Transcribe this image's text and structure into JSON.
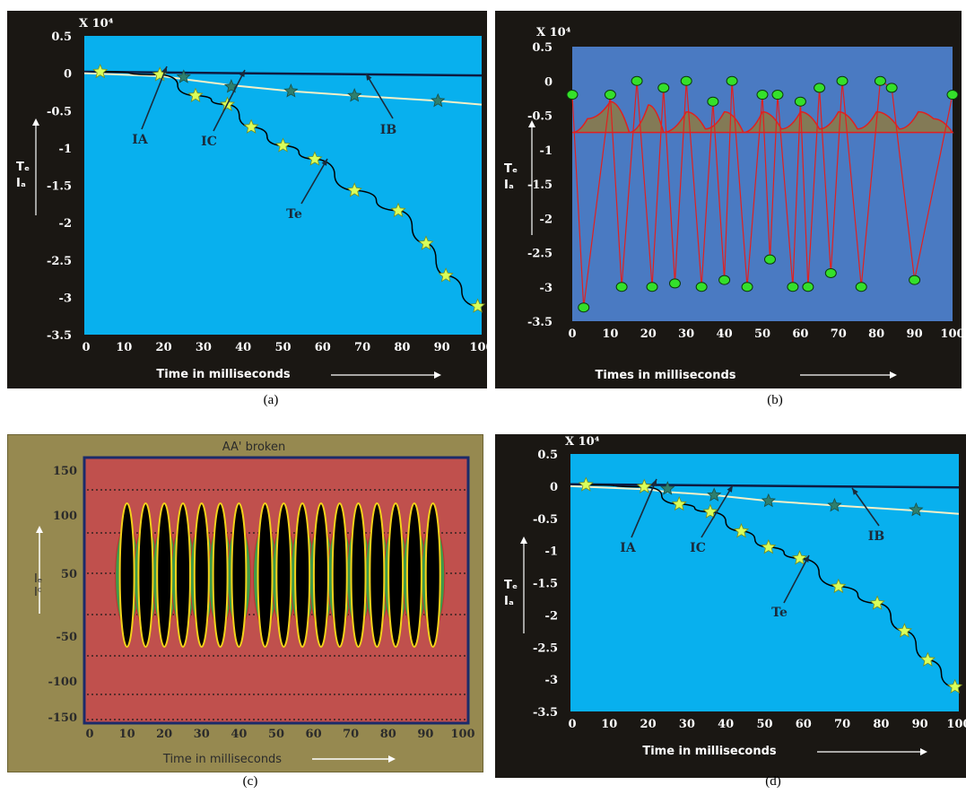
{
  "captions": [
    "(a)",
    "(b)",
    "(c)",
    "(d)"
  ],
  "chart_data": [
    {
      "id": "a",
      "type": "line",
      "title": "",
      "xlabel": "Time in milliseconds",
      "ylabel_lines": [
        "Tₑ",
        "Iₐ"
      ],
      "exponent_label": "X 10⁴",
      "xlim": [
        0,
        100
      ],
      "ylim": [
        -3.5,
        0.5
      ],
      "x_ticks": [
        "0",
        "10",
        "20",
        "30",
        "40",
        "50",
        "60",
        "70",
        "80",
        "90",
        "100"
      ],
      "y_ticks": [
        "0.5",
        "0",
        "-0.5",
        "-1",
        "-1.5",
        "-2",
        "-2.5",
        "-3",
        "-3.5"
      ],
      "annotations": [
        "IA",
        "IC",
        "IB",
        "Te"
      ],
      "series": [
        {
          "name": "IB",
          "x": [
            0,
            100
          ],
          "y": [
            0.02,
            -0.03
          ]
        },
        {
          "name": "IC",
          "x": [
            0,
            20,
            25,
            37,
            52,
            68,
            89,
            100
          ],
          "y": [
            0,
            -0.04,
            -0.08,
            -0.16,
            -0.24,
            -0.3,
            -0.37,
            -0.42
          ]
        },
        {
          "name": "Te",
          "x": [
            4,
            19,
            28,
            36,
            42,
            50,
            58,
            68,
            79,
            86,
            91,
            99
          ],
          "y": [
            0.02,
            -0.02,
            -0.3,
            -0.42,
            -0.72,
            -0.97,
            -1.15,
            -1.57,
            -1.84,
            -2.28,
            -2.71,
            -3.12
          ]
        }
      ],
      "star_points": {
        "IC": {
          "x": [
            25,
            37,
            52,
            68,
            89
          ],
          "y": [
            -0.05,
            -0.18,
            -0.24,
            -0.3,
            -0.37
          ]
        },
        "Te": {
          "x": [
            4,
            19,
            28,
            36,
            42,
            50,
            58,
            68,
            79,
            86,
            91,
            99
          ],
          "y": [
            0.02,
            -0.02,
            -0.3,
            -0.42,
            -0.72,
            -0.97,
            -1.15,
            -1.57,
            -1.84,
            -2.28,
            -2.71,
            -3.12
          ]
        }
      },
      "colors": {
        "background": "#08b0ee",
        "frame": "#1a1713",
        "IB": "#0e1a40",
        "IC": "#f3f0c8",
        "Te": "#000000",
        "star_fill": "#d9ff5a",
        "star_stroke": "#7f8f1c",
        "star_dark": "#2e7f6e"
      }
    },
    {
      "id": "b",
      "type": "line",
      "title": "",
      "xlabel": "Times in milliseconds",
      "ylabel_lines": [
        "Tₑ",
        "Iₐ"
      ],
      "exponent_label": "X 10⁴",
      "xlim": [
        0,
        100
      ],
      "ylim": [
        -3.5,
        0.5
      ],
      "x_ticks": [
        "0",
        "10",
        "20",
        "30",
        "40",
        "50",
        "60",
        "70",
        "80",
        "90",
        "100"
      ],
      "y_ticks": [
        "0.5",
        "0",
        "-0.5",
        "-1",
        "-1.5",
        "-2",
        "-2.5",
        "-3",
        "-3.5"
      ],
      "series": [
        {
          "name": "zigzag",
          "x": [
            0,
            3,
            10,
            13,
            17,
            21,
            24,
            27,
            30,
            34,
            37,
            40,
            42,
            46,
            50,
            52,
            54,
            58,
            60,
            62,
            65,
            68,
            71,
            76,
            81,
            84,
            90,
            100
          ],
          "y": [
            -0.2,
            -3.3,
            -0.2,
            -3.0,
            0.0,
            -3.0,
            -0.1,
            -2.95,
            0.0,
            -3.0,
            -0.3,
            -2.9,
            0.0,
            -3.0,
            -0.2,
            -2.6,
            -0.2,
            -3.0,
            -0.3,
            -3.0,
            -0.1,
            -2.8,
            0.0,
            -3.0,
            0.0,
            -0.1,
            -2.9,
            -0.2
          ]
        },
        {
          "name": "envelope",
          "x": [
            0,
            4,
            10,
            15,
            20,
            24,
            30,
            35,
            40,
            45,
            50,
            55,
            60,
            65,
            70,
            75,
            80,
            86,
            91,
            95,
            100
          ],
          "y": [
            -0.75,
            -0.55,
            -0.3,
            -0.75,
            -0.35,
            -0.75,
            -0.45,
            -0.7,
            -0.45,
            -0.75,
            -0.45,
            -0.7,
            -0.45,
            -0.7,
            -0.45,
            -0.7,
            -0.45,
            -0.7,
            -0.45,
            -0.55,
            -0.75
          ]
        }
      ],
      "markers": {
        "x": [
          0,
          3,
          10,
          13,
          17,
          21,
          24,
          27,
          30,
          34,
          37,
          40,
          42,
          46,
          50,
          52,
          54,
          58,
          60,
          62,
          65,
          68,
          71,
          76,
          81,
          84,
          90,
          100
        ],
        "y": [
          -0.2,
          -3.3,
          -0.2,
          -3.0,
          0.0,
          -3.0,
          -0.1,
          -2.95,
          0.0,
          -3.0,
          -0.3,
          -2.9,
          0.0,
          -3.0,
          -0.2,
          -2.6,
          -0.2,
          -3.0,
          -0.3,
          -3.0,
          -0.1,
          -2.8,
          0.0,
          -3.0,
          0.0,
          -0.1,
          -2.9,
          -0.2
        ]
      },
      "colors": {
        "background": "#4a7ac2",
        "frame": "#1a1713",
        "zigzag": "#e02020",
        "envelope_fill": "#8a7a4a",
        "marker_fill": "#34e02a",
        "marker_stroke": "#0c3a0c"
      }
    },
    {
      "id": "c",
      "type": "line",
      "title": "AA' broken",
      "xlabel": "Time in milliseconds",
      "ylabel_lines": [
        "Iₑ",
        "Iᶜ"
      ],
      "xlim": [
        0,
        100
      ],
      "ylim": [
        -150,
        150
      ],
      "x_ticks": [
        "0",
        "10",
        "20",
        "30",
        "40",
        "50",
        "60",
        "70",
        "80",
        "90",
        "100"
      ],
      "y_ticks": [
        "150",
        "100",
        "50",
        "-50",
        "-100",
        "-150"
      ],
      "reference_lines": [
        115,
        80,
        45,
        5,
        -35,
        -77,
        -110
      ],
      "oscillation_centers": [
        10,
        15,
        20,
        25,
        30,
        35,
        40,
        47,
        52,
        57,
        62,
        67,
        72,
        77,
        82,
        87,
        92
      ],
      "oscillation_range": [
        -65,
        110
      ],
      "colors": {
        "background": "#c0504d",
        "outer": "#968950",
        "frame": "#1c2a6a",
        "green": "#3f9a4a",
        "black": "#000000",
        "yellow": "#f3d21a"
      }
    },
    {
      "id": "d",
      "type": "line",
      "title": "",
      "xlabel": "Time in milliseconds",
      "ylabel_lines": [
        "Tₑ",
        "Iₐ"
      ],
      "exponent_label": "X 10⁴",
      "xlim": [
        0,
        100
      ],
      "ylim": [
        -3.5,
        0.5
      ],
      "x_ticks": [
        "0",
        "10",
        "20",
        "30",
        "40",
        "50",
        "60",
        "70",
        "80",
        "90",
        "100"
      ],
      "y_ticks": [
        "0.5",
        "0",
        "-0.5",
        "-1",
        "-1.5",
        "-2",
        "-2.5",
        "-3",
        "-3.5"
      ],
      "annotations": [
        "IA",
        "IC",
        "IB",
        "Te"
      ],
      "series": [
        {
          "name": "IB",
          "x": [
            0,
            100
          ],
          "y": [
            0.03,
            -0.02
          ]
        },
        {
          "name": "IC",
          "x": [
            0,
            20,
            25,
            37,
            51,
            68,
            89,
            100
          ],
          "y": [
            0,
            -0.05,
            -0.09,
            -0.14,
            -0.23,
            -0.3,
            -0.38,
            -0.43
          ]
        },
        {
          "name": "Te",
          "x": [
            4,
            19,
            28,
            36,
            44,
            51,
            59,
            69,
            79,
            86,
            92,
            99
          ],
          "y": [
            0.02,
            -0.01,
            -0.28,
            -0.4,
            -0.7,
            -0.95,
            -1.12,
            -1.56,
            -1.82,
            -2.25,
            -2.7,
            -3.12
          ]
        }
      ],
      "star_points": {
        "IC": {
          "x": [
            25,
            37,
            51,
            68,
            89
          ],
          "y": [
            -0.04,
            -0.14,
            -0.23,
            -0.3,
            -0.37
          ]
        },
        "Te": {
          "x": [
            4,
            19,
            28,
            36,
            44,
            51,
            59,
            69,
            79,
            86,
            92,
            99
          ],
          "y": [
            0.02,
            -0.01,
            -0.28,
            -0.4,
            -0.7,
            -0.95,
            -1.12,
            -1.56,
            -1.82,
            -2.25,
            -2.7,
            -3.12
          ]
        }
      },
      "colors": {
        "background": "#08b0ee",
        "frame": "#1a1713",
        "IB": "#0e1a40",
        "IC": "#f3f0c8",
        "Te": "#000000",
        "star_fill": "#d9ff5a",
        "star_stroke": "#7f8f1c",
        "star_dark": "#2e7f6e"
      }
    }
  ]
}
